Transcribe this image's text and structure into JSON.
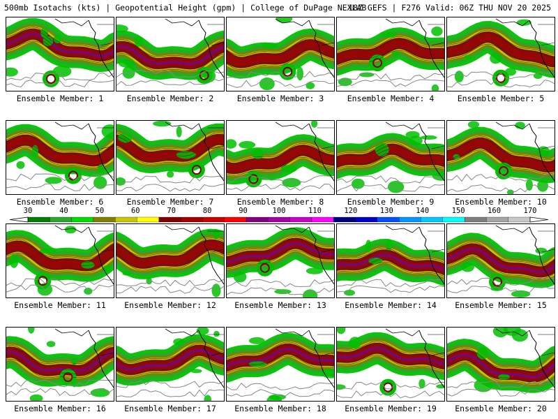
{
  "header": {
    "left": "500mb Isotachs (kts) | Geopotential Height (gpm) | College of DuPage NEXLAB",
    "right": "18Z GEFS | F276 Valid: 06Z THU NOV 20 2025"
  },
  "colorbar": {
    "ticks": [
      "30",
      "40",
      "50",
      "60",
      "70",
      "80",
      "90",
      "100",
      "110",
      "120",
      "130",
      "140",
      "150",
      "160",
      "170"
    ],
    "colors": [
      "#007f00",
      "#2ba82b",
      "#00dc00",
      "#7f7f00",
      "#c8c800",
      "#ffff00",
      "#7f0000",
      "#a50000",
      "#c80000",
      "#ff0000",
      "#7f007f",
      "#a500a5",
      "#c800c8",
      "#ff00ff",
      "#00007f",
      "#0000c8",
      "#0050ff",
      "#0096ff",
      "#00c8ff",
      "#00ffff",
      "#7f7f7f",
      "#a5a5a5",
      "#c8c8c8"
    ]
  },
  "panels": [
    {
      "label": "Ensemble Member: 1"
    },
    {
      "label": "Ensemble Member: 2"
    },
    {
      "label": "Ensemble Member: 3"
    },
    {
      "label": "Ensemble Member: 4"
    },
    {
      "label": "Ensemble Member: 5"
    },
    {
      "label": "Ensemble Member: 6"
    },
    {
      "label": "Ensemble Member: 7"
    },
    {
      "label": "Ensemble Member: 8"
    },
    {
      "label": "Ensemble Member: 9"
    },
    {
      "label": "Ensemble Member: 10"
    },
    {
      "label": "Ensemble Member: 11"
    },
    {
      "label": "Ensemble Member: 12"
    },
    {
      "label": "Ensemble Member: 13"
    },
    {
      "label": "Ensemble Member: 14"
    },
    {
      "label": "Ensemble Member: 15"
    },
    {
      "label": "Ensemble Member: 16"
    },
    {
      "label": "Ensemble Member: 17"
    },
    {
      "label": "Ensemble Member: 18"
    },
    {
      "label": "Ensemble Member: 19"
    },
    {
      "label": "Ensemble Member: 20"
    }
  ]
}
